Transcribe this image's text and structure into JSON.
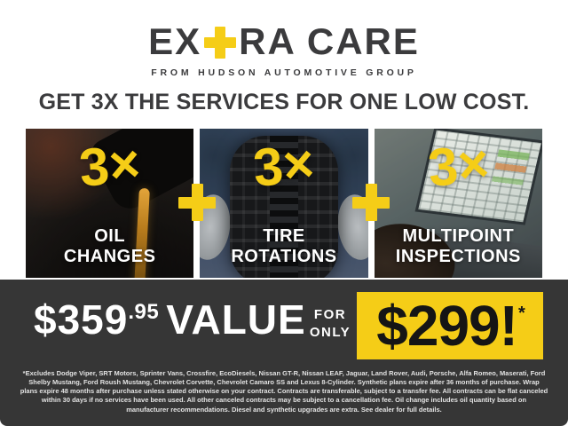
{
  "brand": {
    "logo_prefix": "EX",
    "logo_suffix": "RA CARE",
    "tagline": "FROM HUDSON AUTOMOTIVE GROUP"
  },
  "headline": "GET 3X THE SERVICES FOR ONE LOW COST.",
  "services": [
    {
      "multiplier": "3×",
      "label": "OIL\nCHANGES",
      "photo": "oil-being-poured"
    },
    {
      "multiplier": "3×",
      "label": "TIRE\nROTATIONS",
      "photo": "hands-holding-tire"
    },
    {
      "multiplier": "3×",
      "label": "MULTIPOINT\nINSPECTIONS",
      "photo": "laptop-inspection-software"
    }
  ],
  "offer": {
    "value_dollars": "$359",
    "value_cents": ".95",
    "value_word": "VALUE",
    "for_line": "FOR",
    "only_line": "ONLY",
    "price": "$299!",
    "price_note": "*"
  },
  "disclaimer": "*Excludes Dodge Viper, SRT Motors, Sprinter Vans, Crossfire, EcoDiesels, Nissan GT-R, Nissan LEAF, Jaguar, Land Rover, Audi, Porsche, Alfa Romeo, Maserati, Ford Shelby Mustang, Ford Roush Mustang, Chevrolet Corvette, Chevrolet Camaro SS and Lexus 8-Cylinder. Synthetic plans expire after 36 months of purchase. Wrap plans expire 48 months after purchase unless stated otherwise on your contract. Contracts are transferable, subject to a transfer fee. All contracts can be flat canceled within 30 days if no services have been used. All other canceled contracts may be subject to a cancellation fee. Oil change includes oil quantity based on manufacturer recommendations. Diesel and synthetic upgrades are extra. See dealer for full details.",
  "colors": {
    "accent_yellow": "#F5CD17",
    "charcoal_text": "#3B3B3D",
    "band_background": "#363636",
    "white": "#FFFFFF"
  }
}
